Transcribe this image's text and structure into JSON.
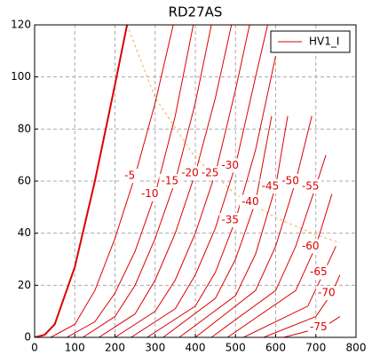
{
  "chart_data": {
    "type": "line",
    "title": "RD27AS",
    "legend": "HV1_I",
    "color": "#dd0000",
    "limit_color": "#f0b050",
    "xlim": [
      0,
      800
    ],
    "ylim": [
      0,
      120
    ],
    "xticks": [
      0,
      100,
      200,
      300,
      400,
      500,
      600,
      700,
      800
    ],
    "yticks": [
      0,
      20,
      40,
      60,
      80,
      100,
      120
    ],
    "grid": true,
    "curves": [
      {
        "label": null,
        "x": [
          0,
          25,
          50,
          100,
          150,
          200,
          230
        ],
        "values": [
          0,
          1,
          5,
          27,
          60,
          97,
          120
        ]
      },
      {
        "label": "-5",
        "x": [
          40,
          100,
          150,
          200,
          250,
          300,
          345
        ],
        "values": [
          0,
          5,
          18,
          38,
          62,
          90,
          120
        ]
      },
      {
        "label": "-10",
        "x": [
          80,
          150,
          200,
          250,
          300,
          350,
          395
        ],
        "values": [
          0,
          6,
          17,
          33,
          55,
          85,
          120
        ]
      },
      {
        "label": "-15",
        "x": [
          120,
          200,
          250,
          300,
          350,
          400,
          440
        ],
        "values": [
          0,
          8,
          20,
          38,
          60,
          90,
          120
        ]
      },
      {
        "label": "-20",
        "x": [
          160,
          250,
          300,
          350,
          400,
          450,
          490
        ],
        "values": [
          0,
          9,
          22,
          40,
          63,
          92,
          120
        ]
      },
      {
        "label": "-25",
        "x": [
          200,
          300,
          350,
          400,
          450,
          500,
          535
        ],
        "values": [
          0,
          10,
          22,
          40,
          63,
          95,
          120
        ]
      },
      {
        "label": "-30",
        "x": [
          240,
          350,
          400,
          450,
          500,
          550,
          580
        ],
        "values": [
          0,
          11,
          24,
          42,
          66,
          100,
          120
        ]
      },
      {
        "label": "-35",
        "x": [
          280,
          400,
          450,
          500,
          550,
          600
        ],
        "values": [
          0,
          12,
          25,
          45,
          72,
          108
        ]
      },
      {
        "label": "-40",
        "x": [
          320,
          450,
          500,
          550,
          590
        ],
        "values": [
          0,
          15,
          30,
          52,
          85
        ]
      },
      {
        "label": "-45",
        "x": [
          360,
          500,
          550,
          600,
          630
        ],
        "values": [
          0,
          16,
          32,
          58,
          85
        ]
      },
      {
        "label": "-50",
        "x": [
          400,
          550,
          600,
          650,
          690
        ],
        "values": [
          0,
          18,
          35,
          60,
          85
        ]
      },
      {
        "label": "-55",
        "x": [
          440,
          600,
          650,
          700,
          725
        ],
        "values": [
          0,
          18,
          35,
          58,
          70
        ]
      },
      {
        "label": "-60",
        "x": [
          480,
          650,
          700,
          740
        ],
        "values": [
          0,
          18,
          35,
          55
        ]
      },
      {
        "label": "-65",
        "x": [
          520,
          680,
          720,
          750
        ],
        "values": [
          0,
          12,
          25,
          35
        ]
      },
      {
        "label": "-70",
        "x": [
          570,
          700,
          740,
          760
        ],
        "values": [
          0,
          8,
          17,
          24
        ]
      },
      {
        "label": "-75",
        "x": [
          620,
          720,
          760
        ],
        "values": [
          0,
          4,
          8
        ]
      }
    ],
    "limit_curve": {
      "x": [
        230,
        300,
        400,
        500,
        600,
        700,
        760
      ],
      "values": [
        120,
        92,
        69,
        55,
        46,
        39.4,
        36.3
      ]
    }
  }
}
